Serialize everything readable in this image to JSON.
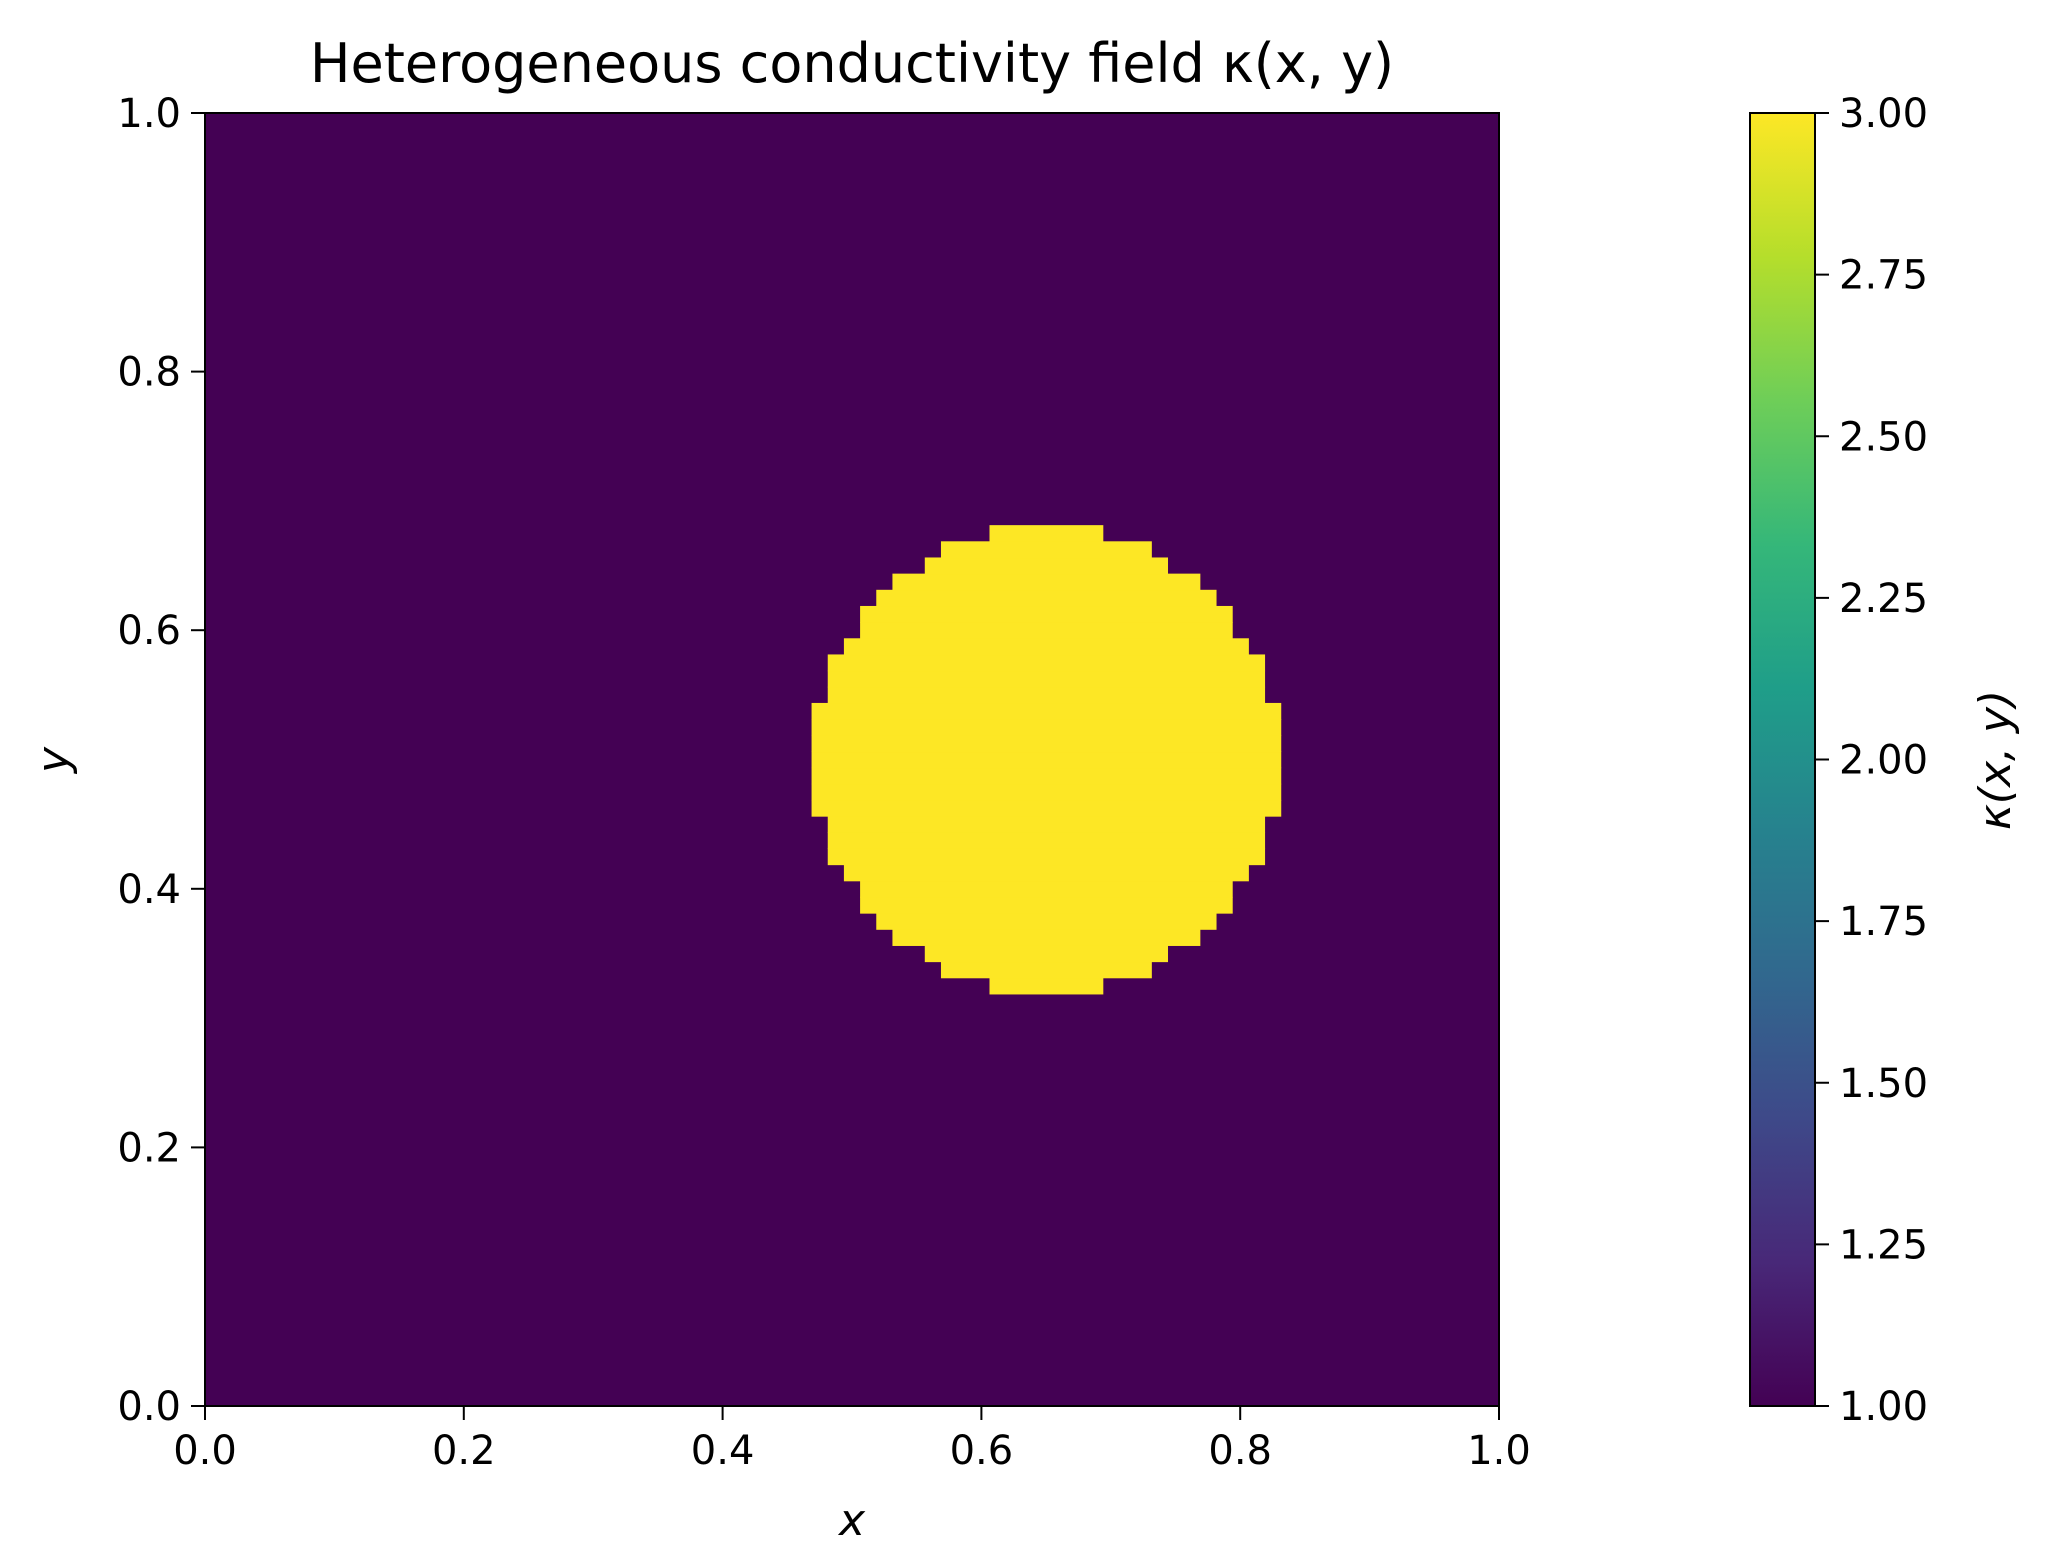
{
  "chart_data": {
    "type": "heatmap",
    "title": "Heterogeneous conductivity field κ(x, y)",
    "xlabel": "x",
    "ylabel": "y",
    "xlim": [
      0.0,
      1.0
    ],
    "ylim": [
      0.0,
      1.0
    ],
    "xticks": [
      "0.0",
      "0.2",
      "0.4",
      "0.6",
      "0.8",
      "1.0"
    ],
    "yticks": [
      "0.0",
      "0.2",
      "0.4",
      "0.6",
      "0.8",
      "1.0"
    ],
    "grid": false,
    "colormap": "viridis",
    "background_value": 1.0,
    "inclusion": {
      "shape": "circle",
      "center": [
        0.65,
        0.5
      ],
      "radius": 0.18,
      "value": 3.0,
      "grid_resolution": 81
    },
    "colorbar": {
      "label": "κ(x, y)",
      "range": [
        1.0,
        3.0
      ],
      "ticks": [
        "3.00",
        "2.75",
        "2.50",
        "2.25",
        "2.00",
        "1.75",
        "1.50",
        "1.25",
        "1.00"
      ]
    }
  },
  "colors": {
    "low": "#440154",
    "high": "#fde725",
    "viridis_stops": [
      "#440154",
      "#482878",
      "#3e4989",
      "#31688e",
      "#26828e",
      "#1f9e89",
      "#35b779",
      "#6ece58",
      "#b5de2b",
      "#fde725"
    ]
  }
}
